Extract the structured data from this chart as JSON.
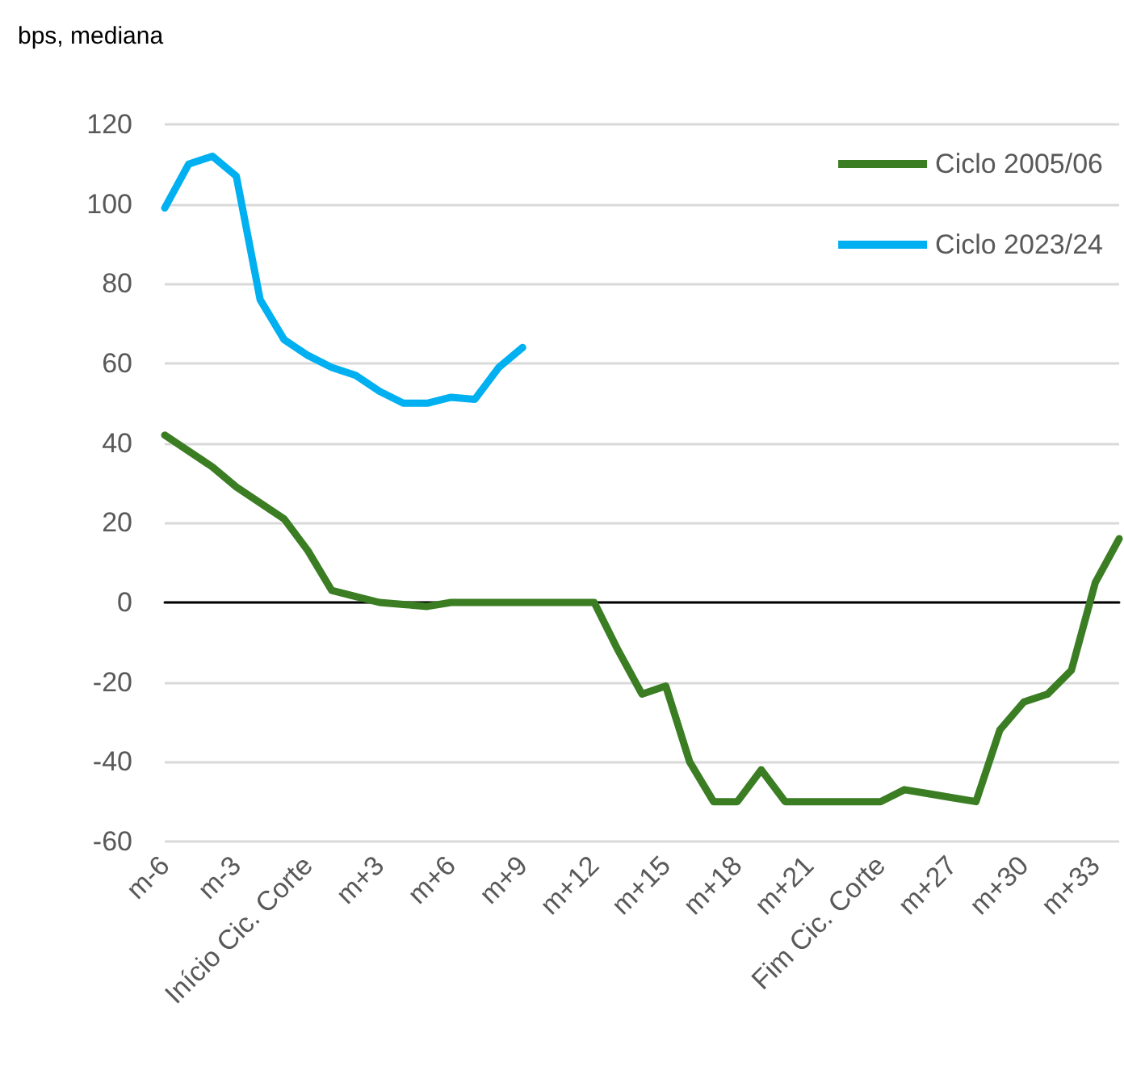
{
  "chart_data": {
    "type": "line",
    "title": "bps, mediana",
    "categories": [
      "m-6",
      null,
      null,
      "m-3",
      null,
      null,
      "Início Cic. Corte",
      null,
      null,
      "m+3",
      null,
      null,
      "m+6",
      null,
      null,
      "m+9",
      null,
      null,
      "m+12",
      null,
      null,
      "m+15",
      null,
      null,
      "m+18",
      null,
      null,
      "m+21",
      null,
      null,
      "Fim Cic. Corte",
      null,
      null,
      "m+27",
      null,
      null,
      "m+30",
      null,
      null,
      "m+33",
      null
    ],
    "series": [
      {
        "name": "Ciclo 2005/06",
        "color": "#3b7d23",
        "values": [
          42,
          38,
          34,
          29,
          25,
          21,
          13,
          3,
          1.5,
          0,
          -0.5,
          -1,
          0,
          0,
          0,
          0,
          0,
          0,
          0,
          -12,
          -23,
          -21,
          -40,
          -50,
          -50,
          -42,
          -50,
          -50,
          -50,
          -50,
          -50,
          -47,
          -48,
          -49,
          -50,
          -32,
          -25,
          -23,
          -17,
          5,
          16
        ]
      },
      {
        "name": "Ciclo 2023/24",
        "color": "#00b0f0",
        "values": [
          99,
          110,
          112,
          107,
          76,
          66,
          62,
          59,
          57,
          53,
          50,
          50,
          51.5,
          51,
          59,
          64,
          null,
          null,
          null,
          null,
          null,
          null,
          null,
          null,
          null,
          null,
          null,
          null,
          null,
          null,
          null,
          null,
          null,
          null,
          null,
          null,
          null,
          null,
          null,
          null,
          null
        ]
      }
    ],
    "ylim": [
      -60,
      120
    ],
    "yticks": [
      -60,
      -40,
      -20,
      0,
      20,
      40,
      60,
      80,
      100,
      120
    ],
    "grid": "y",
    "legend": "top right",
    "marker": "none"
  }
}
